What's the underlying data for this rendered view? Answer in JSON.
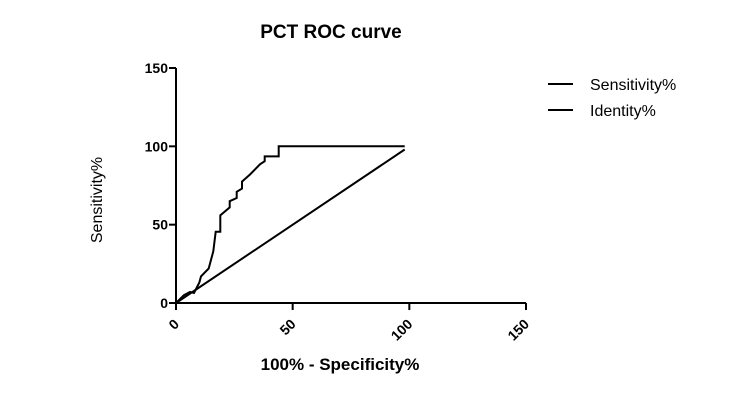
{
  "chart_data": {
    "type": "line",
    "title": "PCT ROC curve",
    "xlabel": "100% - Specificity%",
    "ylabel": "Sensitivity%",
    "xlim": [
      0,
      150
    ],
    "ylim": [
      0,
      150
    ],
    "xticks": [
      0,
      50,
      100,
      150
    ],
    "yticks": [
      0,
      50,
      100,
      150
    ],
    "grid": false,
    "legend_position": "right",
    "series": [
      {
        "name": "Sensitivity%",
        "style": "solid-step",
        "x": [
          0,
          3.4,
          6,
          7.7,
          10,
          10.7,
          14,
          16,
          17,
          19,
          19,
          23,
          23,
          26,
          26,
          28.3,
          28.3,
          31.7,
          36,
          38,
          38,
          44,
          44,
          98
        ],
        "y": [
          0,
          5,
          7,
          6.4,
          13,
          17,
          22,
          33,
          45.5,
          45.5,
          56,
          61,
          65,
          67,
          71,
          73,
          77.5,
          82,
          88.5,
          90.5,
          93.6,
          93.6,
          100,
          100
        ]
      },
      {
        "name": "Identity%",
        "style": "solid",
        "x": [
          0,
          98
        ],
        "y": [
          0,
          98
        ]
      }
    ]
  },
  "legend": {
    "items": [
      "Sensitivity%",
      "Identity%"
    ]
  }
}
